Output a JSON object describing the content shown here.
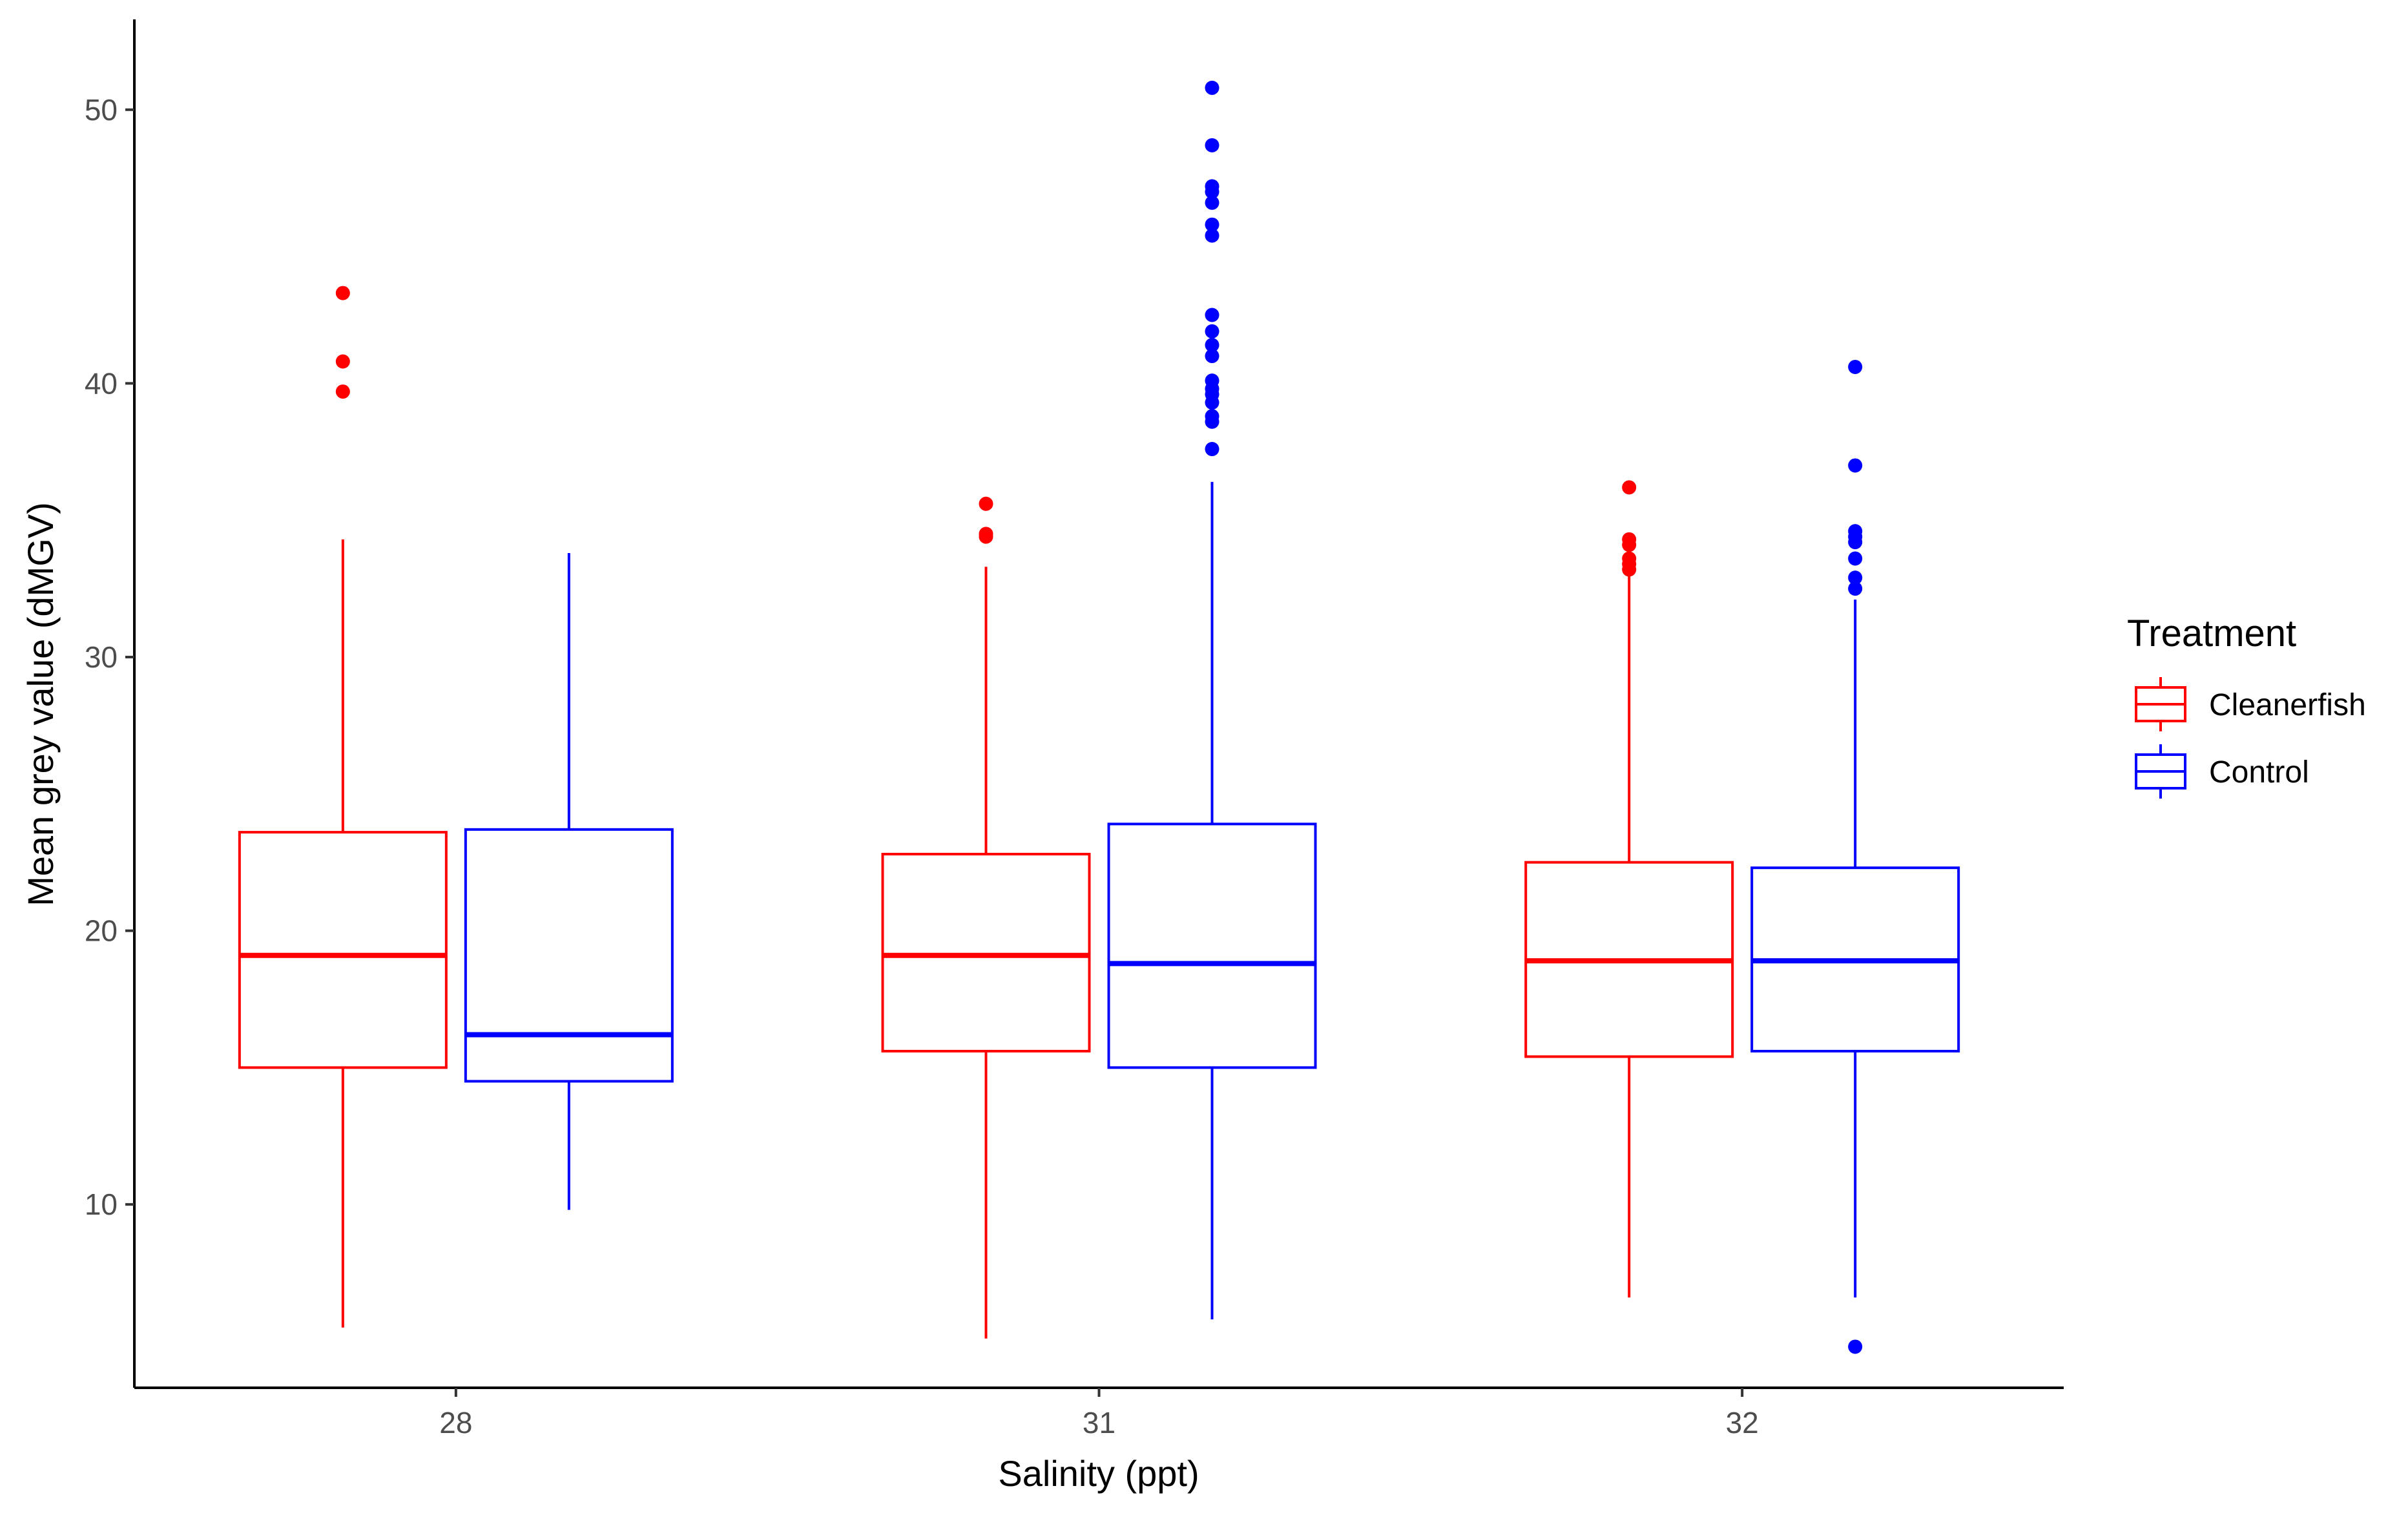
{
  "chart_data": {
    "type": "boxplot",
    "title": "",
    "xlabel": "Salinity (ppt)",
    "ylabel": "Mean grey value (dMGV)",
    "categories": [
      "28",
      "31",
      "32"
    ],
    "yticks": [
      10,
      20,
      30,
      40,
      50
    ],
    "ylim": [
      3.3,
      53.3
    ],
    "grid": false,
    "legend": {
      "title": "Treatment",
      "position": "right",
      "entries": [
        "Cleanerfish",
        "Control"
      ]
    },
    "series": [
      {
        "name": "Cleanerfish",
        "color": "#ff0000",
        "boxes": [
          {
            "category": "28",
            "whisker_low": 5.5,
            "q1": 15.0,
            "median": 19.1,
            "q3": 23.6,
            "whisker_high": 34.3,
            "outliers": [
              39.7,
              40.8,
              43.3
            ]
          },
          {
            "category": "31",
            "whisker_low": 5.1,
            "q1": 15.6,
            "median": 19.1,
            "q3": 22.8,
            "whisker_high": 33.3,
            "outliers": [
              34.4,
              34.5,
              35.6
            ]
          },
          {
            "category": "32",
            "whisker_low": 6.6,
            "q1": 15.4,
            "median": 18.9,
            "q3": 22.5,
            "whisker_high": 33.0,
            "outliers": [
              33.2,
              33.4,
              33.6,
              34.1,
              34.3,
              36.2
            ]
          }
        ]
      },
      {
        "name": "Control",
        "color": "#0000ff",
        "boxes": [
          {
            "category": "28",
            "whisker_low": 9.8,
            "q1": 14.5,
            "median": 16.2,
            "q3": 23.7,
            "whisker_high": 33.8,
            "outliers": []
          },
          {
            "category": "31",
            "whisker_low": 5.8,
            "q1": 15.0,
            "median": 18.8,
            "q3": 23.9,
            "whisker_high": 36.4,
            "outliers": [
              37.6,
              38.6,
              38.8,
              39.3,
              39.6,
              39.8,
              40.1,
              41.0,
              41.4,
              41.9,
              42.5,
              45.4,
              45.8,
              46.6,
              47.0,
              47.2,
              48.7,
              50.8
            ]
          },
          {
            "category": "32",
            "whisker_low": 6.6,
            "q1": 15.6,
            "median": 18.9,
            "q3": 22.3,
            "whisker_high": 32.1,
            "outliers": [
              4.8,
              32.5,
              32.9,
              33.6,
              34.2,
              34.4,
              34.6,
              37.0,
              40.6
            ]
          }
        ]
      }
    ]
  }
}
